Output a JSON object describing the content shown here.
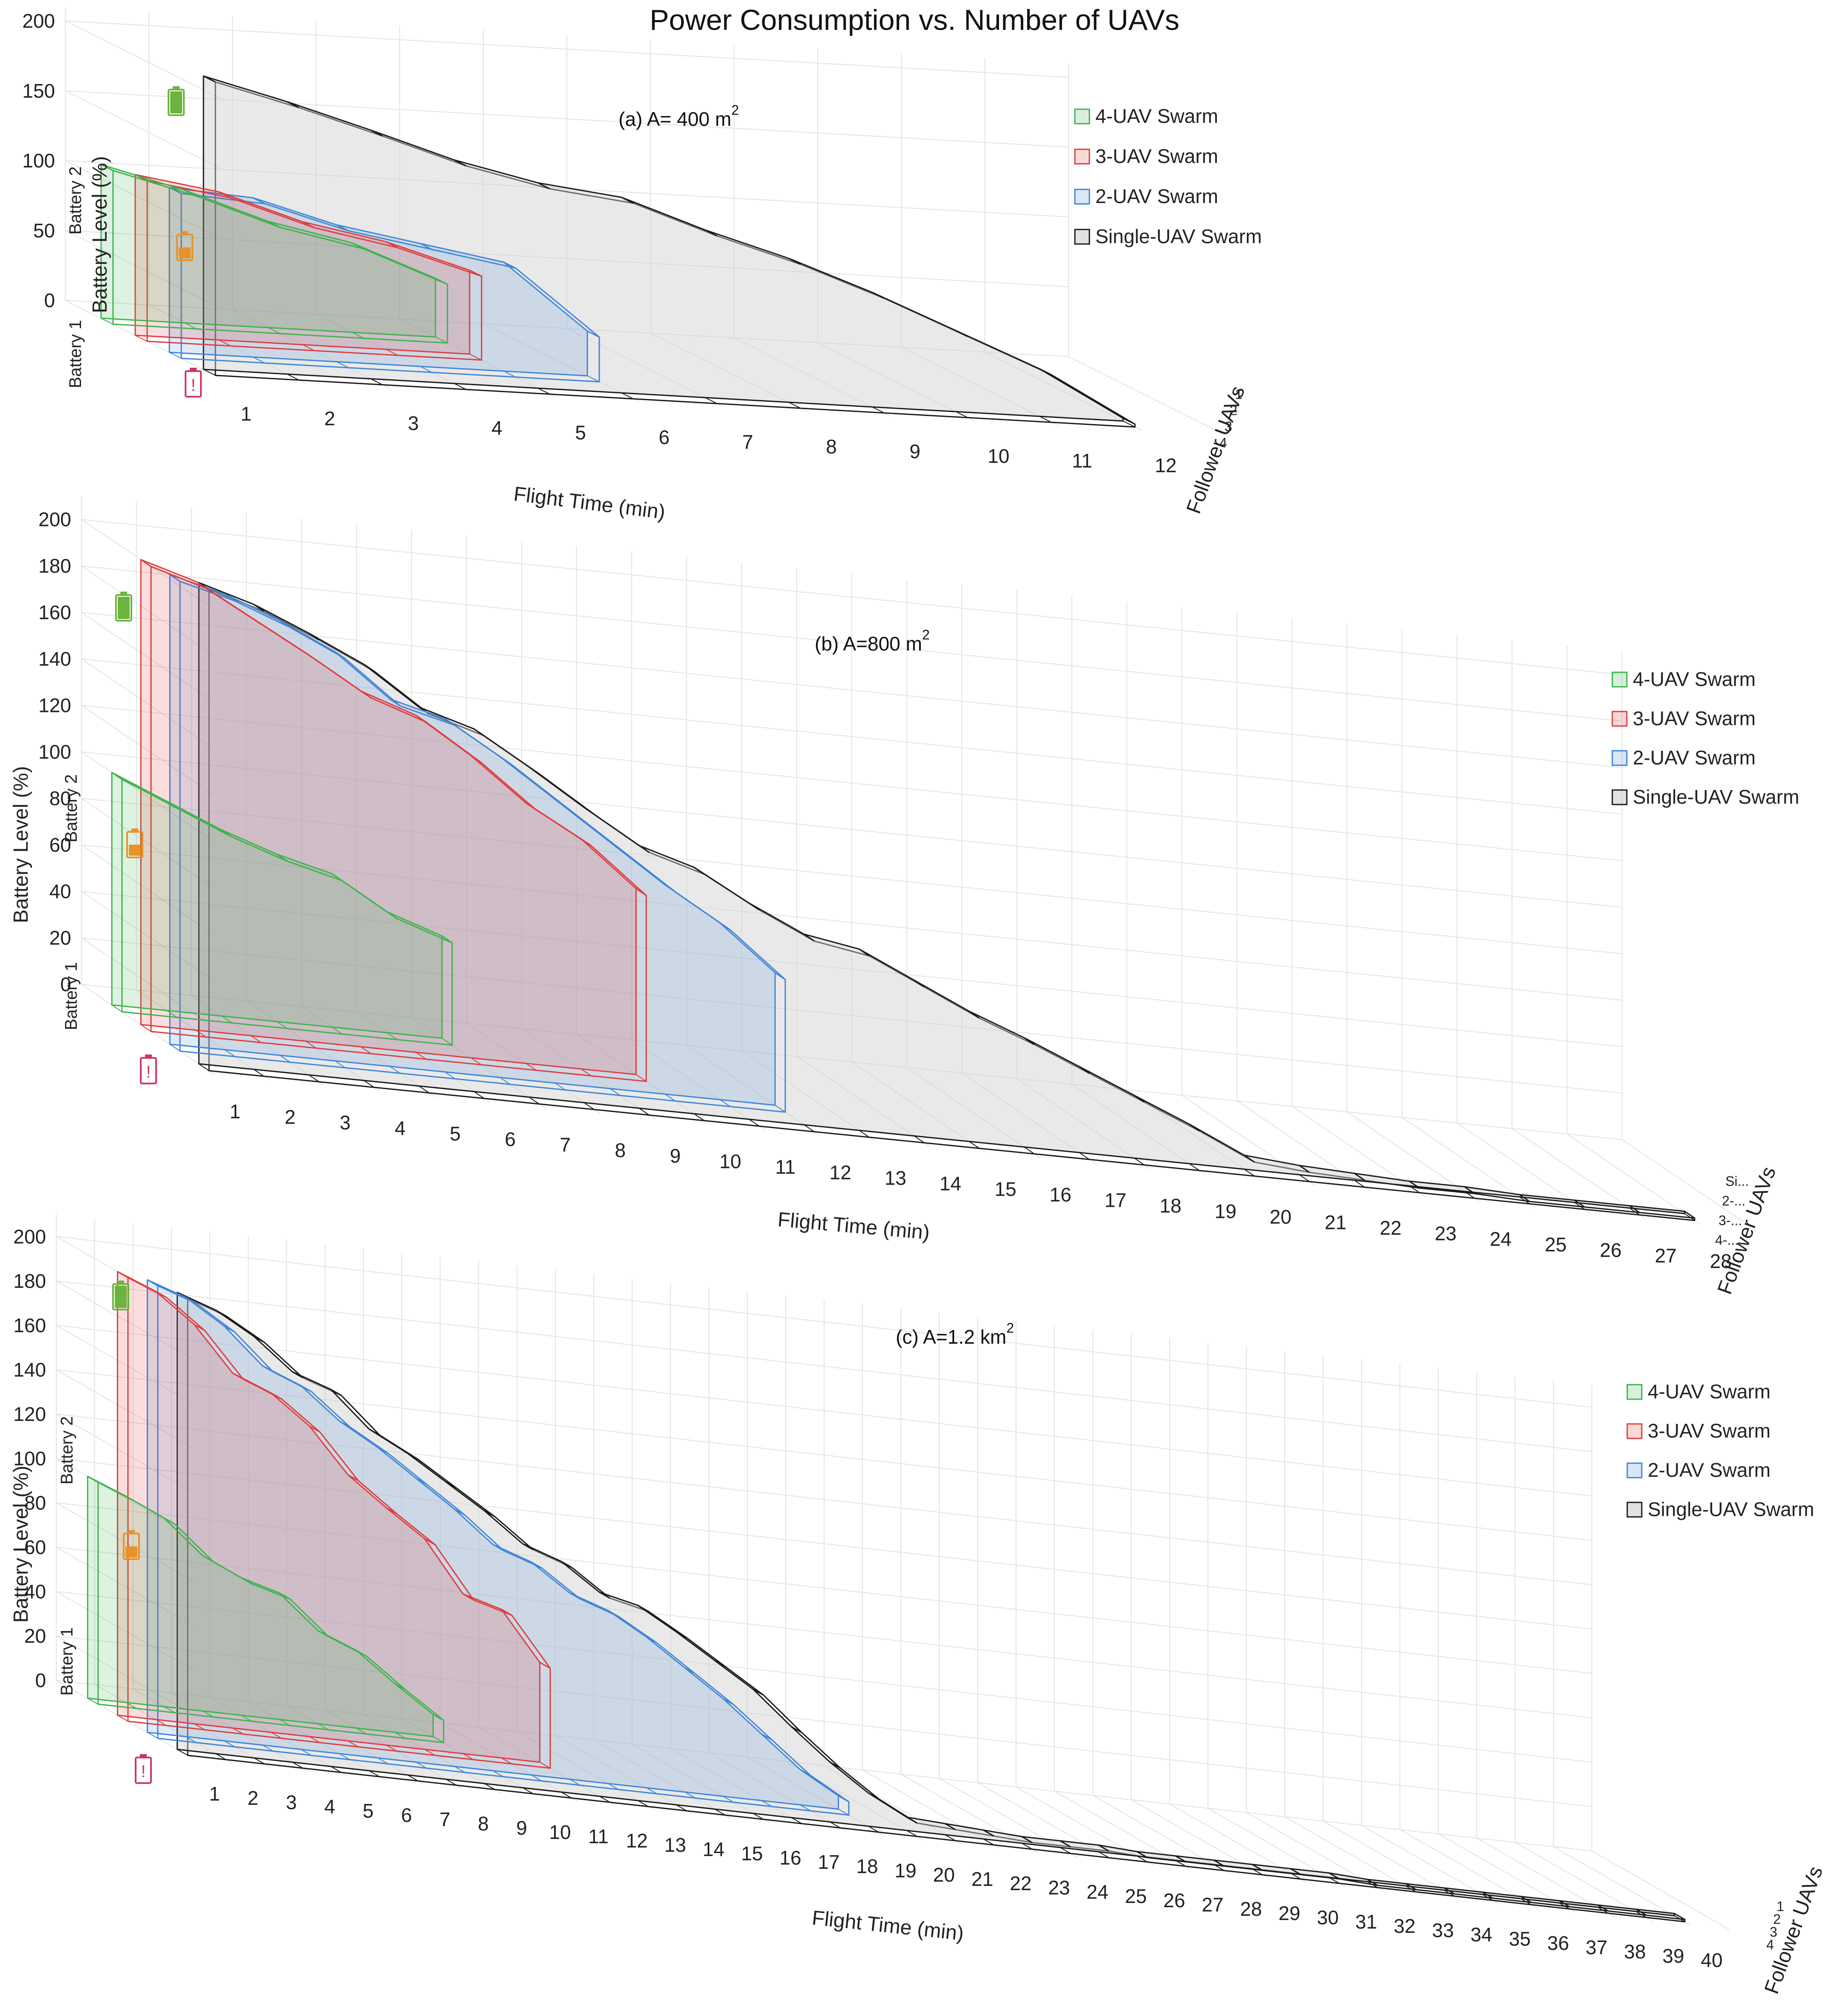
{
  "page_title": "Power Consumption vs. Number of UAVs",
  "colors": {
    "4-UAV Swarm": "#3cb44b",
    "3-UAV Swarm": "#e03c3c",
    "2-UAV Swarm": "#3f86d8",
    "Single-UAV Swarm": "#1a1a1a",
    "battery_full": "#6db33f",
    "battery_half": "#e8922a",
    "battery_low": "#d0355f"
  },
  "battery_labels": {
    "battery2": "Battery 2",
    "battery1": "Battery 1"
  },
  "chart_data": [
    {
      "type": "area",
      "panel": "a",
      "title": "(a) A= 400 m",
      "title_sup": "2",
      "xlabel": "Flight Time (min)",
      "ylabel": "Battery Level (%)",
      "zlabel": "Follower UAVs",
      "x_ticks": [
        "1",
        "2",
        "3",
        "4",
        "5",
        "6",
        "7",
        "8",
        "9",
        "10",
        "11",
        "12"
      ],
      "y_ticks": [
        "0",
        "50",
        "100",
        "150",
        "200"
      ],
      "z_ticks": [
        "1",
        "2",
        "3",
        "4"
      ],
      "ylim": [
        0,
        200
      ],
      "legend": [
        "4-UAV Swarm",
        "3-UAV Swarm",
        "2-UAV Swarm",
        "Single-UAV Swarm"
      ],
      "series": [
        {
          "name": "Single-UAV Swarm",
          "x": [
            1,
            2,
            3,
            4,
            5,
            6,
            7,
            8,
            9,
            10,
            11,
            12
          ],
          "values": [
            210,
            195,
            178,
            160,
            147,
            140,
            120,
            103,
            82,
            58,
            34,
            2
          ]
        },
        {
          "name": "2-UAV Swarm",
          "x": [
            1,
            2,
            3,
            4,
            5,
            6
          ],
          "values": [
            118,
            114,
            98,
            88,
            78,
            32
          ]
        },
        {
          "name": "3-UAV Swarm",
          "x": [
            1,
            2,
            3,
            4,
            5
          ],
          "values": [
            115,
            106,
            88,
            77,
            60
          ]
        },
        {
          "name": "4-UAV Swarm",
          "x": [
            1,
            2,
            3,
            4,
            5
          ],
          "values": [
            110,
            95,
            76,
            64,
            42
          ]
        }
      ]
    },
    {
      "type": "area",
      "panel": "b",
      "title": "(b) A=800 m",
      "title_sup": "2",
      "xlabel": "Flight Time (min)",
      "ylabel": "Battery Level (%)",
      "zlabel": "Follower UAVs",
      "x_ticks": [
        "1",
        "2",
        "3",
        "4",
        "5",
        "6",
        "7",
        "8",
        "9",
        "10",
        "11",
        "12",
        "13",
        "14",
        "15",
        "16",
        "17",
        "18",
        "19",
        "20",
        "21",
        "22",
        "23",
        "24",
        "25",
        "26",
        "27",
        "28"
      ],
      "y_ticks": [
        "0",
        "20",
        "40",
        "60",
        "80",
        "100",
        "120",
        "140",
        "160",
        "180",
        "200"
      ],
      "z_ticks": [
        "Si...",
        "2-...",
        "3-...",
        "4-..."
      ],
      "ylim": [
        0,
        200
      ],
      "legend": [
        "4-UAV Swarm",
        "3-UAV Swarm",
        "2-UAV Swarm",
        "Single-UAV Swarm"
      ],
      "series": [
        {
          "name": "Single-UAV Swarm",
          "x": [
            1,
            2,
            3,
            4,
            5,
            6,
            7,
            8,
            9,
            10,
            11,
            12,
            13,
            14,
            15,
            16,
            17,
            18,
            19,
            20,
            21,
            22,
            23,
            24,
            25,
            26,
            27,
            28
          ],
          "values": [
            207,
            200,
            190,
            179,
            163,
            156,
            142,
            127,
            113,
            106,
            93,
            82,
            78,
            67,
            56,
            47,
            37,
            27,
            17,
            6,
            4,
            3,
            2,
            2,
            1,
            1,
            1,
            1
          ]
        },
        {
          "name": "2-UAV Swarm",
          "x": [
            1,
            2,
            3,
            4,
            5,
            6,
            7,
            8,
            9,
            10,
            11,
            12
          ],
          "values": [
            202,
            196,
            187,
            176,
            158,
            152,
            138,
            122,
            106,
            90,
            76,
            57
          ]
        },
        {
          "name": "3-UAV Swarm",
          "x": [
            1,
            2,
            3,
            4,
            5,
            6,
            7,
            8,
            9,
            10
          ],
          "values": [
            200,
            193,
            180,
            167,
            153,
            145,
            130,
            112,
            99,
            80
          ]
        },
        {
          "name": "4-UAV Swarm",
          "x": [
            1,
            2,
            3,
            4,
            5,
            6,
            7
          ],
          "values": [
            100,
            90,
            80,
            72,
            66,
            52,
            44
          ]
        }
      ]
    },
    {
      "type": "area",
      "panel": "c",
      "title": "(c) A=1.2 km",
      "title_sup": "2",
      "xlabel": "Flight Time (min)",
      "ylabel": "Battery Level (%)",
      "zlabel": "Follower UAVs",
      "x_ticks": [
        "1",
        "2",
        "3",
        "4",
        "5",
        "6",
        "7",
        "8",
        "9",
        "10",
        "11",
        "12",
        "13",
        "14",
        "15",
        "16",
        "17",
        "18",
        "19",
        "20",
        "21",
        "22",
        "23",
        "24",
        "25",
        "26",
        "27",
        "28",
        "29",
        "30",
        "31",
        "32",
        "33",
        "34",
        "35",
        "36",
        "37",
        "38",
        "39",
        "40"
      ],
      "y_ticks": [
        "0",
        "20",
        "40",
        "60",
        "80",
        "100",
        "120",
        "140",
        "160",
        "180",
        "200"
      ],
      "z_ticks": [
        "1",
        "2",
        "3",
        "4"
      ],
      "ylim": [
        0,
        200
      ],
      "legend": [
        "4-UAV Swarm",
        "3-UAV Swarm",
        "2-UAV Swarm",
        "Single-UAV Swarm"
      ],
      "series": [
        {
          "name": "Single-UAV Swarm",
          "x": [
            1,
            2,
            3,
            4,
            5,
            6,
            7,
            8,
            9,
            10,
            11,
            12,
            13,
            14,
            15,
            16,
            17,
            18,
            19,
            20,
            21,
            22,
            23,
            24,
            25,
            26,
            27,
            28,
            29,
            30,
            31,
            32,
            33,
            34,
            35,
            36,
            37,
            38,
            39,
            40
          ],
          "values": [
            206,
            200,
            190,
            176,
            170,
            154,
            145,
            134,
            123,
            110,
            104,
            92,
            88,
            78,
            67,
            56,
            41,
            27,
            15,
            6,
            5,
            4,
            3,
            3,
            3,
            2,
            2,
            2,
            2,
            2,
            2,
            1,
            1,
            1,
            1,
            1,
            1,
            1,
            1,
            1
          ]
        },
        {
          "name": "2-UAV Swarm",
          "x": [
            1,
            2,
            3,
            4,
            5,
            6,
            7,
            8,
            9,
            10,
            11,
            12,
            13,
            14,
            15,
            16,
            17,
            18,
            19
          ],
          "values": [
            204,
            198,
            187,
            171,
            164,
            150,
            140,
            128,
            116,
            102,
            96,
            84,
            78,
            68,
            56,
            44,
            30,
            16,
            6
          ]
        },
        {
          "name": "3-UAV Swarm",
          "x": [
            1,
            2,
            3,
            4,
            5,
            6,
            7,
            8,
            9,
            10,
            11,
            12
          ],
          "values": [
            200,
            193,
            180,
            160,
            153,
            140,
            120,
            107,
            95,
            72,
            67,
            45
          ]
        },
        {
          "name": "4-UAV Swarm",
          "x": [
            1,
            2,
            3,
            4,
            5,
            6,
            7,
            8,
            9,
            10
          ],
          "values": [
            100,
            93,
            85,
            70,
            62,
            57,
            42,
            35,
            22,
            10
          ]
        }
      ]
    }
  ]
}
